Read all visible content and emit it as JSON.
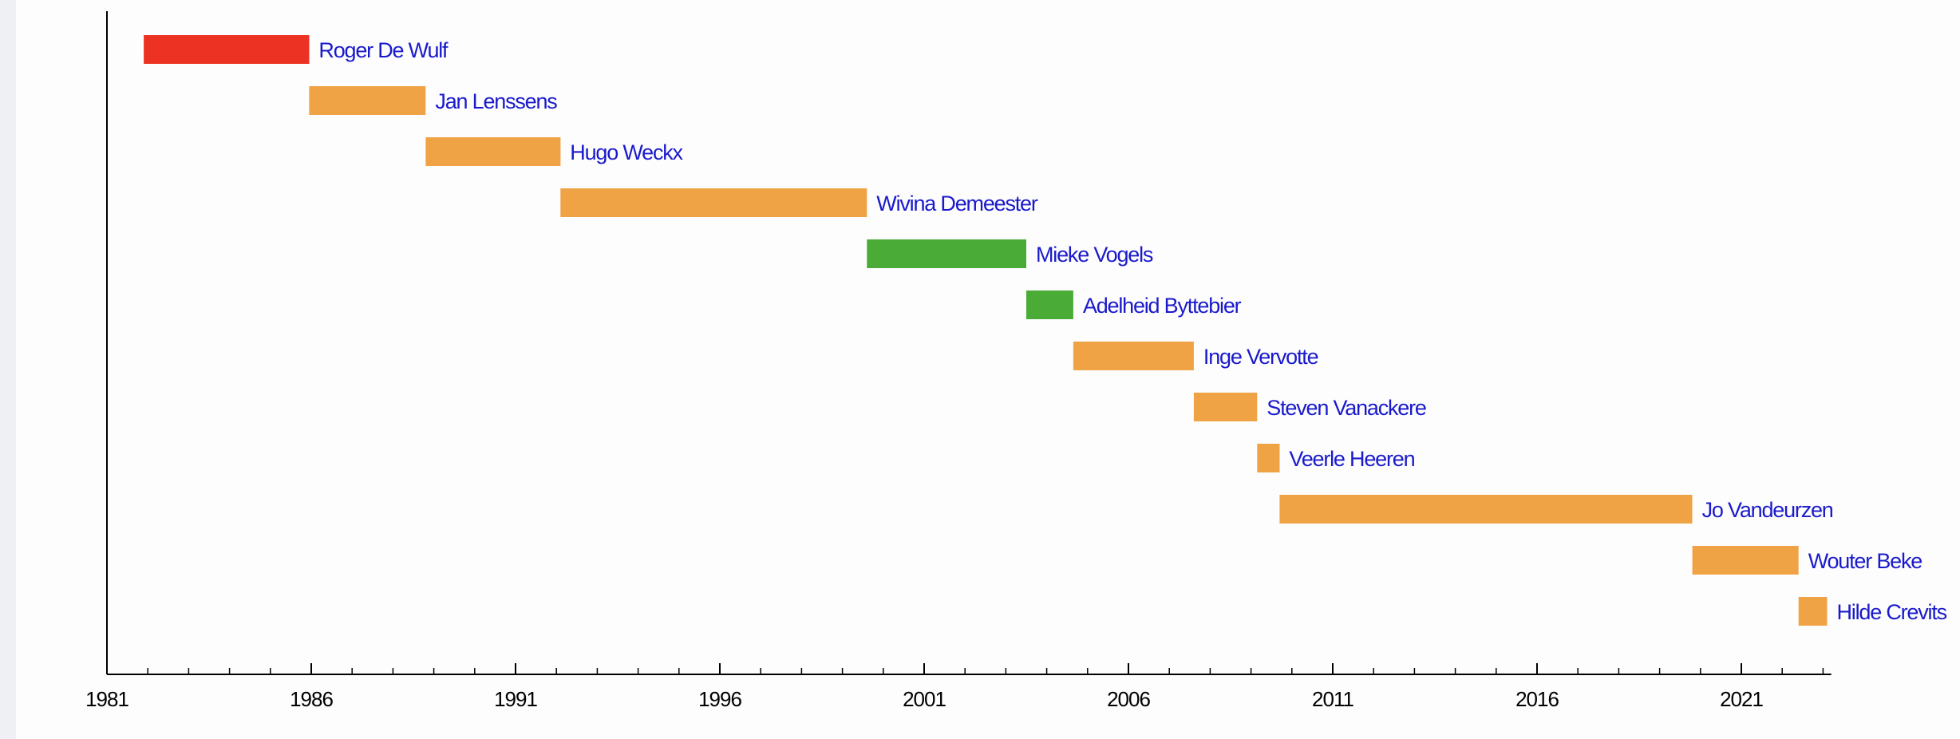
{
  "chart_data": {
    "type": "timeline",
    "title": "",
    "xlabel": "",
    "ylabel": "",
    "xlim": [
      1981,
      2023.2
    ],
    "ticks": [
      "1981",
      "1986",
      "1991",
      "1996",
      "2001",
      "2006",
      "2011",
      "2016",
      "2021"
    ],
    "grid": false,
    "colors": {
      "red": "#ec3323",
      "orange": "#f0a345",
      "green": "#4aac36",
      "label": "#1a1acc",
      "axis": "#000000"
    },
    "bars": [
      {
        "name": "Roger De Wulf",
        "start": 1981.9,
        "end": 1985.95,
        "color": "red"
      },
      {
        "name": "Jan Lenssens",
        "start": 1985.95,
        "end": 1988.8,
        "color": "orange"
      },
      {
        "name": "Hugo Weckx",
        "start": 1988.8,
        "end": 1992.1,
        "color": "orange"
      },
      {
        "name": "Wivina Demeester",
        "start": 1992.1,
        "end": 1999.6,
        "color": "orange"
      },
      {
        "name": "Mieke Vogels",
        "start": 1999.6,
        "end": 2003.5,
        "color": "green"
      },
      {
        "name": "Adelheid Byttebier",
        "start": 2003.5,
        "end": 2004.65,
        "color": "green"
      },
      {
        "name": "Inge Vervotte",
        "start": 2004.65,
        "end": 2007.6,
        "color": "orange"
      },
      {
        "name": "Steven Vanackere",
        "start": 2007.6,
        "end": 2009.15,
        "color": "orange"
      },
      {
        "name": "Veerle Heeren",
        "start": 2009.15,
        "end": 2009.7,
        "color": "orange"
      },
      {
        "name": "Jo Vandeurzen",
        "start": 2009.7,
        "end": 2019.8,
        "color": "orange"
      },
      {
        "name": "Wouter Beke",
        "start": 2019.8,
        "end": 2022.4,
        "color": "orange"
      },
      {
        "name": "Hilde Crevits",
        "start": 2022.4,
        "end": 2023.1,
        "color": "orange"
      }
    ]
  }
}
